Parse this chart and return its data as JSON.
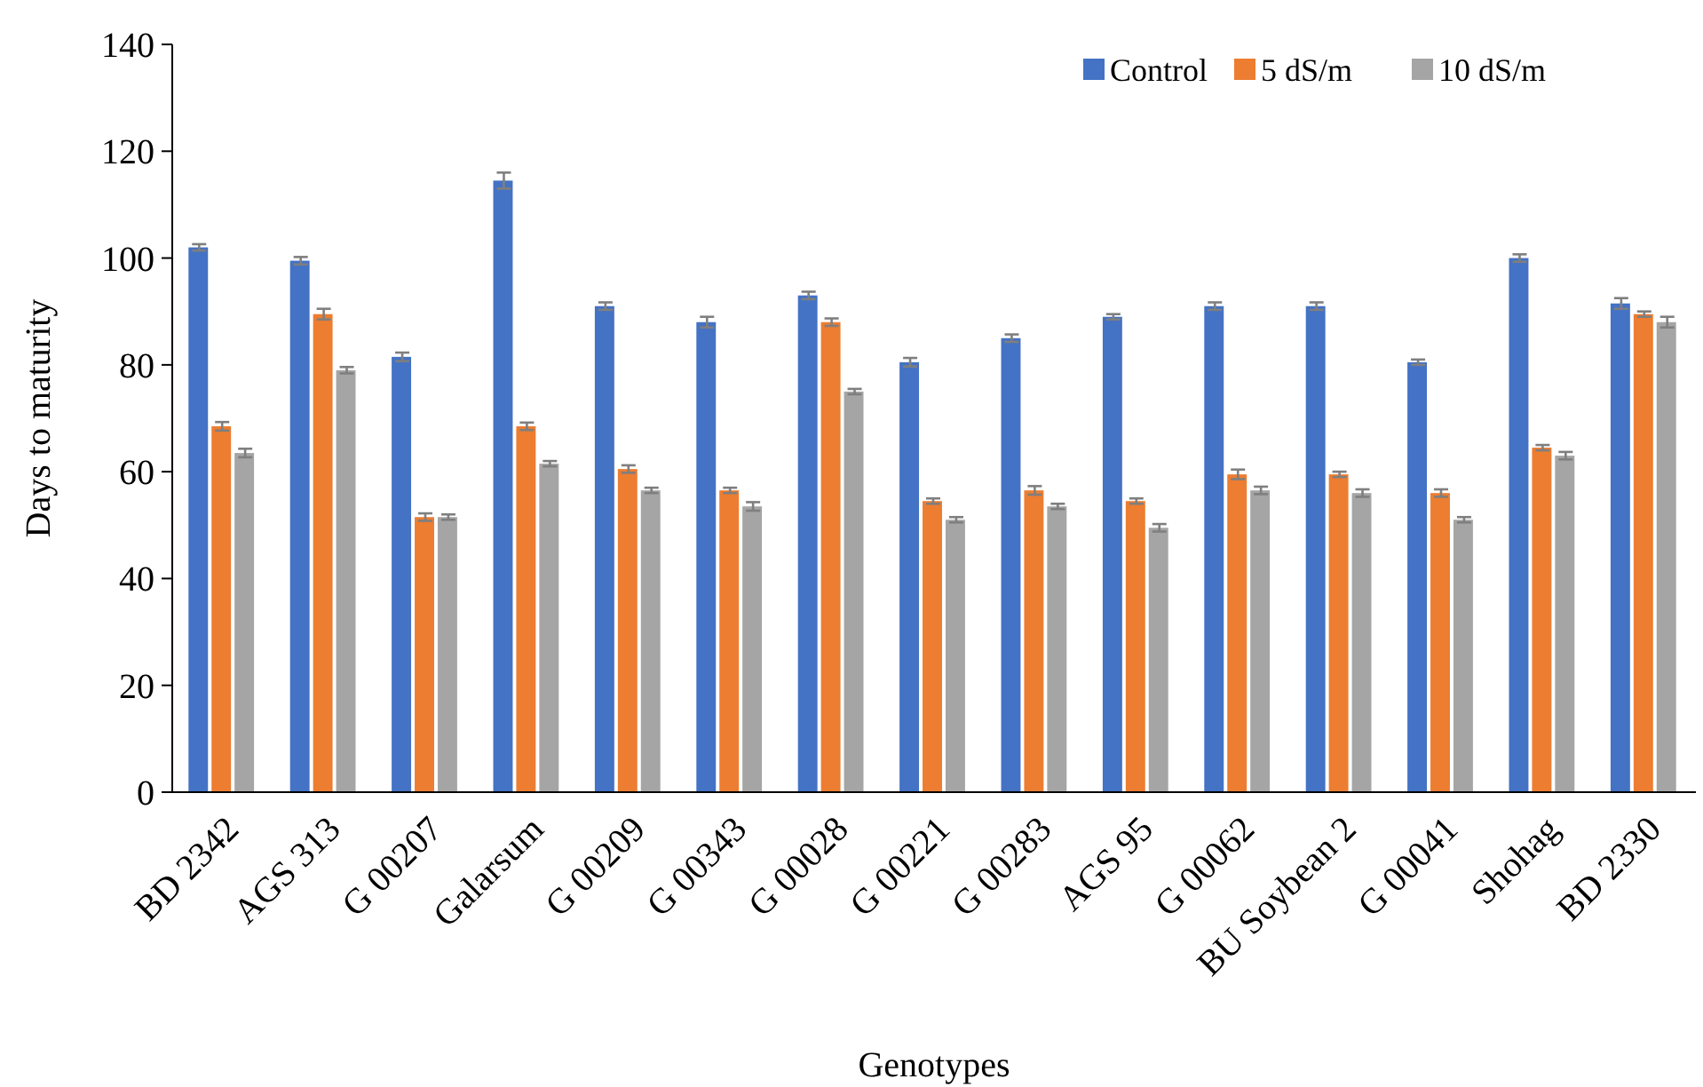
{
  "chart_data": {
    "type": "bar",
    "xlabel": "Genotypes",
    "ylabel": "Days to maturity",
    "categories": [
      "BD 2342",
      "AGS 313",
      "G 00207",
      "Galarsum",
      "G 00209",
      "G 00343",
      "G 00028",
      "G 00221",
      "G 00283",
      "AGS 95",
      "G 00062",
      "BU Soybean 2",
      "G 00041",
      "Shohag",
      "BD 2330"
    ],
    "series": [
      {
        "name": "Control",
        "color": "#4472c4",
        "values": [
          102,
          99.5,
          81.5,
          114.5,
          91,
          88,
          93,
          80.5,
          85,
          89,
          91,
          91,
          80.5,
          100,
          91.5
        ],
        "errors": [
          0.6,
          0.7,
          0.8,
          1.5,
          0.7,
          1,
          0.7,
          0.8,
          0.7,
          0.5,
          0.7,
          0.7,
          0.5,
          0.7,
          1
        ]
      },
      {
        "name": "5 dS/m",
        "color": "#ed7d31",
        "values": [
          68.5,
          89.5,
          51.5,
          68.5,
          60.5,
          56.5,
          88,
          54.5,
          56.5,
          54.5,
          59.5,
          59.5,
          56,
          64.5,
          89.5
        ],
        "errors": [
          0.8,
          1,
          0.7,
          0.7,
          0.7,
          0.5,
          0.7,
          0.5,
          0.8,
          0.5,
          0.9,
          0.5,
          0.7,
          0.5,
          0.5
        ]
      },
      {
        "name": "10 dS/m",
        "color": "#a5a5a5",
        "values": [
          63.5,
          79,
          51.5,
          61.5,
          56.5,
          53.5,
          75,
          51,
          53.5,
          49.5,
          56.5,
          56,
          51,
          63,
          88
        ],
        "errors": [
          0.8,
          0.6,
          0.5,
          0.5,
          0.5,
          0.8,
          0.5,
          0.5,
          0.5,
          0.7,
          0.7,
          0.7,
          0.5,
          0.7,
          1
        ]
      }
    ],
    "ylim": [
      0,
      140
    ],
    "yticks": [
      0,
      20,
      40,
      60,
      80,
      100,
      120,
      140
    ],
    "grid": false,
    "legend": "top right"
  }
}
